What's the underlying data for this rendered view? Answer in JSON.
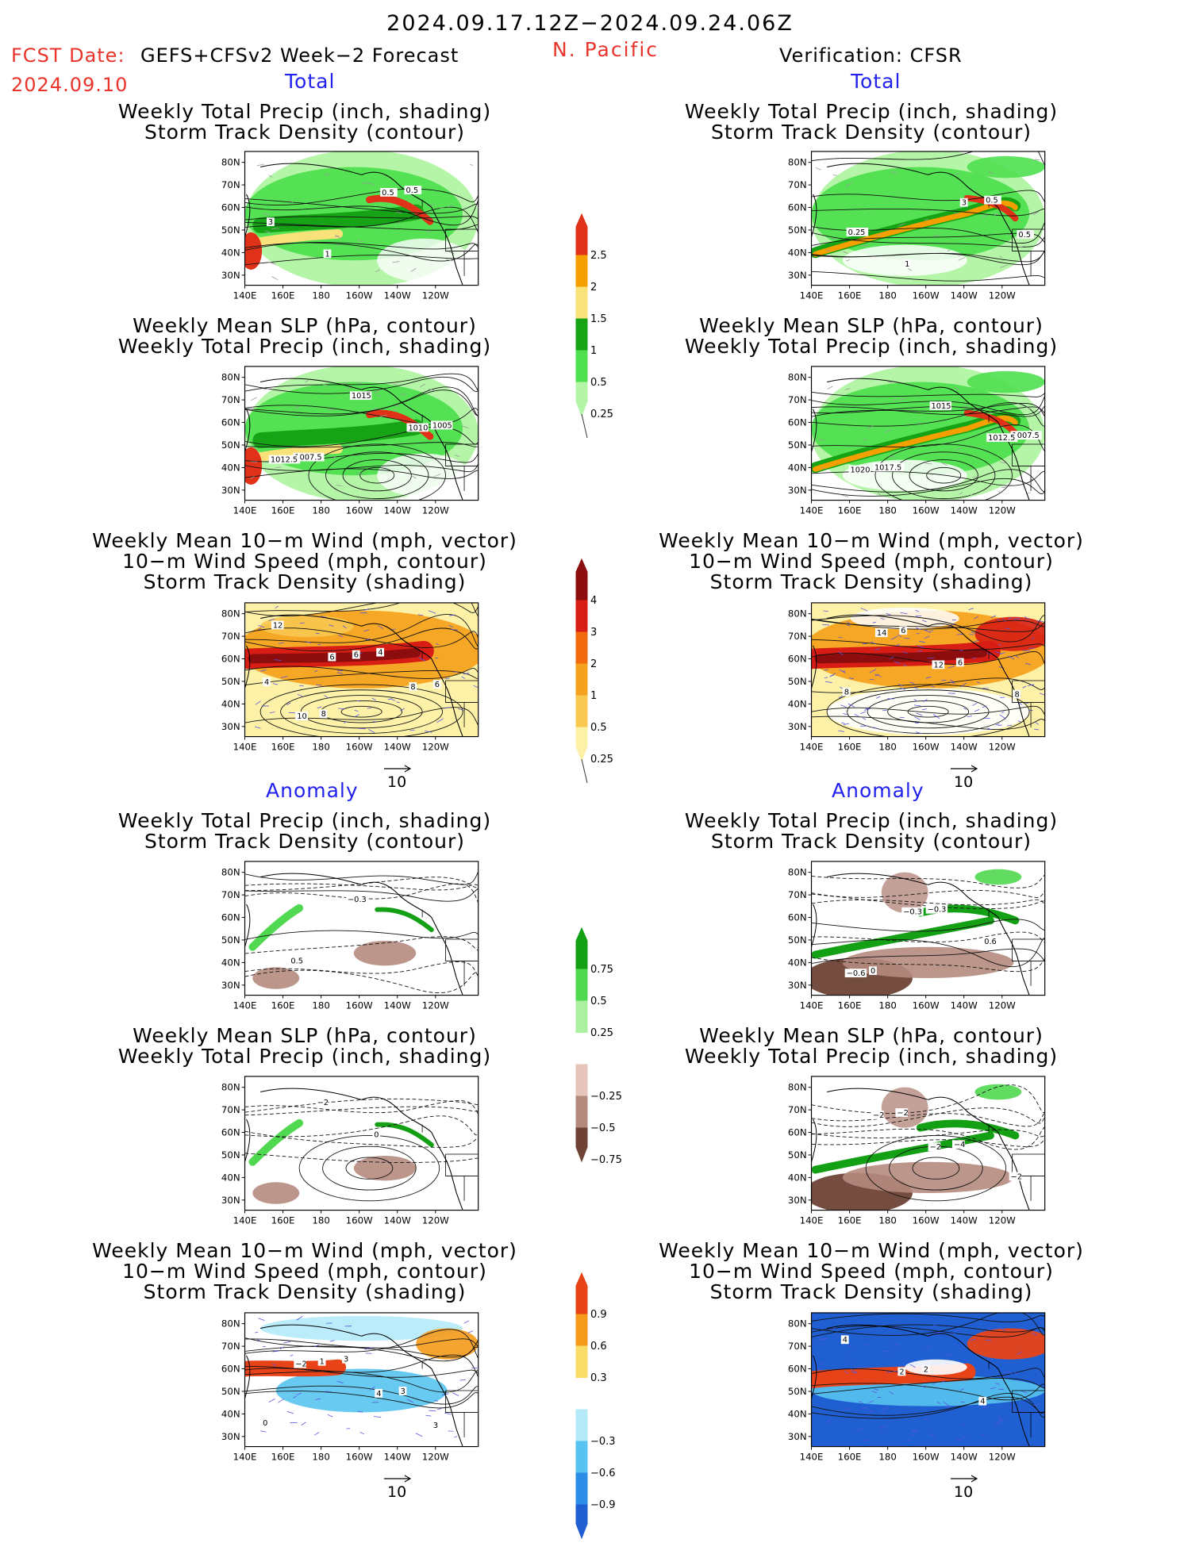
{
  "header": {
    "date_range": "2024.09.17.12Z−2024.09.24.06Z",
    "region": "N. Pacific",
    "fcst_label": "FCST Date:",
    "fcst_source": "GEFS+CFSv2 Week−2 Forecast",
    "fcst_date": "2024.09.10",
    "verification": "Verification: CFSR"
  },
  "sections": {
    "total": "Total",
    "anomaly": "Anomaly"
  },
  "panel_titles": {
    "precip_track": [
      "Weekly Total Precip (inch, shading)",
      "Storm Track Density (contour)"
    ],
    "slp_precip": [
      "Weekly Mean SLP (hPa, contour)",
      "Weekly Total Precip (inch, shading)"
    ],
    "wind_track": [
      "Weekly Mean 10−m Wind (mph, vector)",
      "10−m Wind Speed (mph, contour)",
      "Storm Track Density (shading)"
    ]
  },
  "axes": {
    "lat_labels": [
      "80N",
      "70N",
      "60N",
      "50N",
      "40N",
      "30N"
    ],
    "lon_labels": [
      "140E",
      "160E",
      "180",
      "160W",
      "140W",
      "120W"
    ]
  },
  "vector_ref": "10",
  "colorbars": {
    "precip_total": {
      "labels": [
        "2.5",
        "2",
        "1.5",
        "1",
        "0.5",
        "0.25"
      ],
      "colors": [
        "#e03218",
        "#f5a000",
        "#fae27a",
        "#16a316",
        "#4fe04f",
        "#b5f5a8"
      ]
    },
    "track_total": {
      "labels": [
        "4",
        "3",
        "2",
        "1",
        "0.5",
        "0.25"
      ],
      "colors": [
        "#8b0d0d",
        "#d81e14",
        "#f26a0e",
        "#f5a21e",
        "#f8c850",
        "#fdf1a8"
      ]
    },
    "precip_anom": {
      "labels": [
        "0.75",
        "0.5",
        "0.25",
        "−0.25",
        "−0.5",
        "−0.75"
      ],
      "colors": [
        "#14a014",
        "#50d850",
        "#aaf0a0",
        "#ffffff",
        "#e5c5bb",
        "#b58a7e",
        "#6e4336"
      ]
    },
    "track_anom": {
      "labels": [
        "0.9",
        "0.6",
        "0.3",
        "−0.3",
        "−0.6",
        "−0.9"
      ],
      "colors": [
        "#e84318",
        "#f59a1a",
        "#fadc68",
        "#ffffff",
        "#b4eaf8",
        "#58c3f0",
        "#2c8de6",
        "#1f5fd2"
      ]
    }
  },
  "map_labels": {
    "f_pt": [
      "0.5",
      "3",
      "1",
      "0.5"
    ],
    "f_slp": [
      "1005",
      "1007.5",
      "1015",
      "1010",
      "1012.5"
    ],
    "f_wind": [
      "4",
      "8",
      "4",
      "6",
      "10",
      "6",
      "8",
      "12",
      "6"
    ],
    "o_pt": [
      "0.5",
      "0.25",
      "1",
      "3",
      "0.5"
    ],
    "o_slp": [
      "1007.5",
      "1017.5",
      "1015",
      "1012.5",
      "1020"
    ],
    "o_wind": [
      "8",
      "6",
      "6",
      "8",
      "14",
      "12"
    ],
    "fa_pt": [
      "0.5",
      "−0.3"
    ],
    "fa_slp": [
      "−2",
      "0"
    ],
    "fa_wind": [
      "3",
      "3",
      "0",
      "1",
      "4",
      "3",
      "−2"
    ],
    "oa_pt": [
      "0",
      "−0.3",
      "0.6",
      "−0.6",
      "−0.3"
    ],
    "oa_slp": [
      "−2",
      "−4",
      "−2",
      "−2",
      "−2"
    ],
    "oa_wind": [
      "2",
      "4",
      "4",
      "2"
    ]
  }
}
